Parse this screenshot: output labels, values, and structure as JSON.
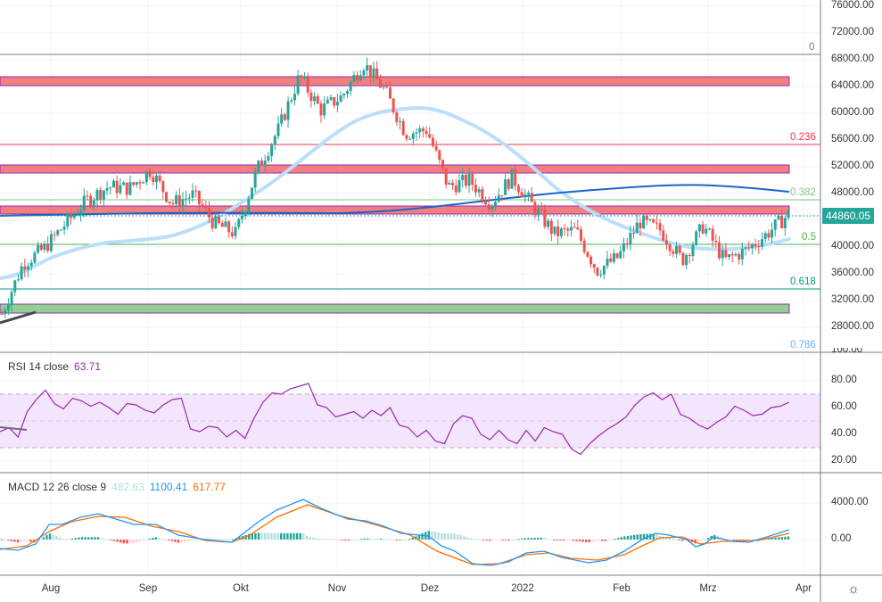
{
  "chart_data": [
    {
      "type": "candlestick",
      "title": "Price chart with Fibonacci retracement, support/resistance zones and moving averages",
      "xlabel": "",
      "ylabel": "",
      "x_ticks": [
        "Aug",
        "Sep",
        "Okt",
        "Nov",
        "Dez",
        "2022",
        "Feb",
        "Mrz",
        "Apr"
      ],
      "y_ticks": [
        76000,
        72000,
        68000,
        64000,
        60000,
        56000,
        52000,
        48000,
        40000,
        36000,
        32000,
        28000
      ],
      "ylim": [
        26000,
        78000
      ],
      "last_price": 44860.05,
      "approx_close_path": [
        {
          "t": "Jul-20",
          "close": 30000
        },
        {
          "t": "Jul-26",
          "close": 37500
        },
        {
          "t": "Aug-01",
          "close": 39800
        },
        {
          "t": "Aug-07",
          "close": 43500
        },
        {
          "t": "Aug-14",
          "close": 47000
        },
        {
          "t": "Aug-21",
          "close": 49000
        },
        {
          "t": "Aug-28",
          "close": 48800
        },
        {
          "t": "Sep-05",
          "close": 51500
        },
        {
          "t": "Sep-07",
          "close": 46500
        },
        {
          "t": "Sep-15",
          "close": 47800
        },
        {
          "t": "Sep-22",
          "close": 43500
        },
        {
          "t": "Sep-29",
          "close": 42000
        },
        {
          "t": "Okt-05",
          "close": 51500
        },
        {
          "t": "Okt-12",
          "close": 57500
        },
        {
          "t": "Okt-20",
          "close": 65500
        },
        {
          "t": "Okt-27",
          "close": 60500
        },
        {
          "t": "Nov-03",
          "close": 62500
        },
        {
          "t": "Nov-09",
          "close": 67500
        },
        {
          "t": "Nov-15",
          "close": 63500
        },
        {
          "t": "Nov-22",
          "close": 57000
        },
        {
          "t": "Nov-28",
          "close": 57500
        },
        {
          "t": "Dez-04",
          "close": 49000
        },
        {
          "t": "Dez-12",
          "close": 50000
        },
        {
          "t": "Dez-20",
          "close": 46500
        },
        {
          "t": "Dez-27",
          "close": 50500
        },
        {
          "t": "Jan-03",
          "close": 46000
        },
        {
          "t": "Jan-10",
          "close": 42000
        },
        {
          "t": "Jan-17",
          "close": 42500
        },
        {
          "t": "Jan-24",
          "close": 36500
        },
        {
          "t": "Jan-31",
          "close": 38500
        },
        {
          "t": "Feb-07",
          "close": 43800
        },
        {
          "t": "Feb-14",
          "close": 42500
        },
        {
          "t": "Feb-21",
          "close": 38000
        },
        {
          "t": "Feb-28",
          "close": 43200
        },
        {
          "t": "Mrz-07",
          "close": 38000
        },
        {
          "t": "Mrz-14",
          "close": 39500
        },
        {
          "t": "Mrz-21",
          "close": 42000
        },
        {
          "t": "Mrz-28",
          "close": 44860
        }
      ],
      "moving_averages": [
        {
          "name": "MA (light blue)",
          "color": "#bbdefb",
          "approx_path": [
            [
              0,
              28000
            ],
            [
              60,
              30500
            ],
            [
              166,
              31500
            ],
            [
              270,
              37500
            ],
            [
              378,
              52000
            ],
            [
              430,
              59500
            ],
            [
              490,
              60500
            ],
            [
              560,
              57000
            ],
            [
              660,
              46500
            ],
            [
              760,
              40000
            ],
            [
              830,
              40500
            ],
            [
              885,
              41300
            ]
          ]
        },
        {
          "name": "MA (dark blue)",
          "color": "#1e64c8",
          "approx_path": [
            [
              0,
              44300
            ],
            [
              166,
              44700
            ],
            [
              378,
              44800
            ],
            [
              482,
              45600
            ],
            [
              600,
              47800
            ],
            [
              760,
              49600
            ],
            [
              885,
              48300
            ]
          ]
        }
      ],
      "fibonacci": [
        {
          "level": "0",
          "price": 68800,
          "color": "#787b86"
        },
        {
          "level": "0.236",
          "price": 55500,
          "color": "#f23645"
        },
        {
          "level": "0.382",
          "price": 47000,
          "color": "#81c784"
        },
        {
          "level": "0.5",
          "price": 40700,
          "color": "#4caf50"
        },
        {
          "level": "0.618",
          "price": 34000,
          "color": "#089981"
        },
        {
          "level": "0.786",
          "price": 24500,
          "color": "#64b5f6"
        }
      ],
      "zones": [
        {
          "type": "resistance",
          "from": 64300,
          "to": 65700,
          "color": "#f08080"
        },
        {
          "type": "resistance",
          "from": 51600,
          "to": 53000,
          "color": "#f08080"
        },
        {
          "type": "resistance",
          "from": 44300,
          "to": 45600,
          "color": "#f08080"
        },
        {
          "type": "support",
          "from": 30300,
          "to": 31600,
          "color": "#90d090"
        }
      ]
    },
    {
      "type": "line",
      "title": "RSI 14 close",
      "value": 63.71,
      "y_ticks": [
        100,
        80,
        60,
        40,
        20
      ],
      "band": [
        30,
        70
      ],
      "series": [
        {
          "name": "RSI",
          "color": "#9c27b0",
          "approx_values": [
            42,
            45,
            38,
            57,
            66,
            73,
            63,
            59,
            67,
            65,
            61,
            64,
            60,
            55,
            63,
            62,
            58,
            56,
            62,
            66,
            67,
            44,
            42,
            46,
            45,
            38,
            43,
            37,
            52,
            64,
            71,
            70,
            74,
            76,
            78,
            62,
            60,
            53,
            55,
            57,
            52,
            58,
            54,
            60,
            47,
            45,
            38,
            43,
            35,
            33,
            48,
            54,
            52,
            40,
            36,
            43,
            36,
            33,
            43,
            35,
            45,
            42,
            40,
            29,
            25,
            33,
            39,
            44,
            48,
            53,
            62,
            68,
            71,
            66,
            70,
            55,
            52,
            47,
            44,
            49,
            53,
            61,
            58,
            54,
            55,
            60,
            61,
            64
          ]
        }
      ]
    },
    {
      "type": "bar+line",
      "title": "MACD 12 26 close 9",
      "values": {
        "histogram": 482.63,
        "macd": 1100.41,
        "signal": 617.77
      },
      "y_ticks": [
        4000,
        0
      ],
      "series": [
        {
          "name": "MACD",
          "color": "#2196f3"
        },
        {
          "name": "Signal",
          "color": "#ff6d00"
        },
        {
          "name": "Histogram",
          "color_pos": "#26a69a",
          "color_pos_fading": "#b2dfdb",
          "color_neg": "#ef5350",
          "color_neg_fading": "#ffcdd2"
        }
      ]
    }
  ],
  "price_axis": {
    "labels": [
      "76000.00",
      "72000.00",
      "68000.00",
      "64000.00",
      "60000.00",
      "56000.00",
      "52000.00",
      "48000.00",
      "40000.00",
      "36000.00",
      "32000.00",
      "28000.00"
    ],
    "last_price_label": "44860.05"
  },
  "rsi_axis": {
    "labels": [
      "100.00",
      "80.00",
      "60.00",
      "40.00",
      "20.00"
    ]
  },
  "macd_axis": {
    "labels": [
      "4000.00",
      "0.00"
    ]
  },
  "time_axis": {
    "labels": [
      "Aug",
      "Sep",
      "Okt",
      "Nov",
      "Dez",
      "2022",
      "Feb",
      "Mrz",
      "Apr"
    ]
  },
  "fib_labels": {
    "l0": "0",
    "l236": "0.236",
    "l382": "0.382",
    "l5": "0.5",
    "l618": "0.618",
    "l786": "0.786"
  },
  "rsi_legend": {
    "name": "RSI 14 close",
    "value": "63.71"
  },
  "macd_legend": {
    "name": "MACD 12 26 close 9",
    "hist": "482.63",
    "macd": "1100.41",
    "signal": "617.77"
  },
  "settings_icon": "gear-icon"
}
